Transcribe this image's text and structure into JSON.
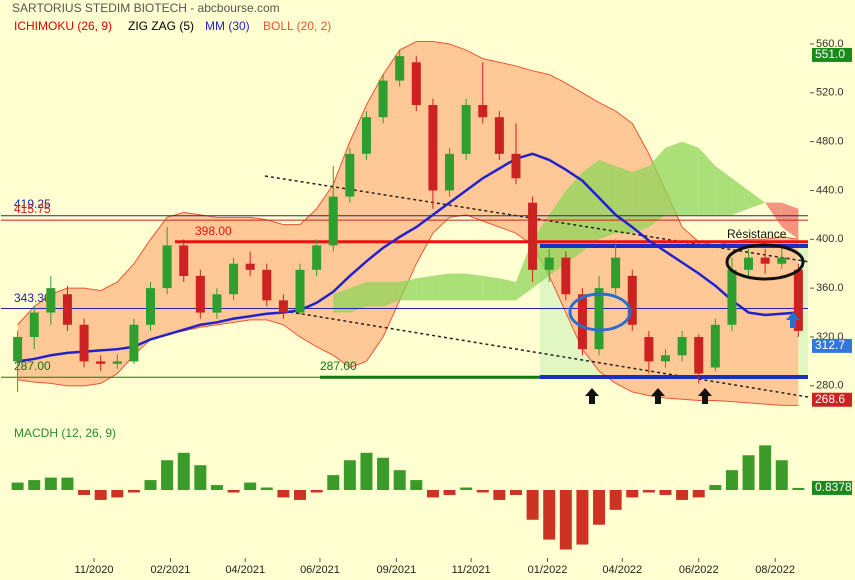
{
  "header": {
    "title": "SARTORIUS STEDIM BIOTECH - abcbourse.com"
  },
  "chart_data": [
    {
      "type": "candlestick",
      "legend": [
        {
          "name": "ICHIMOKU (26, 9)",
          "color": "#dd0000"
        },
        {
          "name": "ZIG ZAG (5)",
          "color": "#000000"
        },
        {
          "name": "MM (30)",
          "color": "#2222cc"
        },
        {
          "name": "BOLL (20, 2)",
          "color": "#ee5533"
        }
      ],
      "x": [
        0,
        1,
        2,
        3,
        4,
        5,
        6,
        7,
        8,
        9,
        10,
        11,
        12,
        13,
        14,
        15,
        16,
        17,
        18,
        19,
        20,
        21,
        22,
        23,
        24,
        25,
        26,
        27,
        28,
        29,
        30,
        31,
        32,
        33,
        34,
        35,
        36,
        37,
        38,
        39,
        40,
        41,
        42,
        43,
        44,
        45,
        46,
        47
      ],
      "open": [
        300,
        320,
        340,
        355,
        330,
        300,
        298,
        300,
        330,
        360,
        395,
        370,
        340,
        355,
        380,
        375,
        350,
        340,
        375,
        395,
        435,
        470,
        500,
        530,
        545,
        510,
        440,
        470,
        510,
        500,
        470,
        430,
        375,
        385,
        355,
        310,
        360,
        370,
        320,
        300,
        305,
        320,
        295,
        330,
        375,
        385,
        380,
        375
      ],
      "high": [
        325,
        345,
        370,
        362,
        335,
        305,
        306,
        335,
        365,
        410,
        400,
        375,
        360,
        385,
        390,
        380,
        355,
        380,
        400,
        460,
        475,
        505,
        535,
        555,
        550,
        515,
        475,
        515,
        545,
        505,
        495,
        435,
        392,
        390,
        360,
        370,
        400,
        375,
        325,
        310,
        325,
        322,
        335,
        385,
        392,
        392,
        395,
        380
      ],
      "low": [
        275,
        310,
        330,
        325,
        295,
        292,
        294,
        298,
        325,
        355,
        365,
        335,
        335,
        350,
        370,
        345,
        335,
        338,
        370,
        390,
        430,
        465,
        495,
        525,
        505,
        425,
        435,
        465,
        495,
        465,
        445,
        365,
        365,
        350,
        305,
        305,
        355,
        325,
        290,
        295,
        300,
        282,
        292,
        325,
        368,
        372,
        376,
        320
      ],
      "close": [
        320,
        340,
        360,
        330,
        300,
        298,
        300,
        330,
        360,
        395,
        370,
        340,
        355,
        380,
        375,
        350,
        340,
        375,
        395,
        435,
        470,
        500,
        530,
        550,
        510,
        440,
        470,
        510,
        500,
        470,
        450,
        375,
        385,
        355,
        310,
        360,
        385,
        330,
        300,
        305,
        320,
        290,
        330,
        375,
        385,
        380,
        385,
        325
      ],
      "up_color": "#2e9e2e",
      "down_color": "#cc2222",
      "mm30": [
        300,
        302,
        305,
        307,
        308,
        309,
        310,
        312,
        318,
        322,
        326,
        330,
        332,
        335,
        337,
        339,
        340,
        342,
        348,
        357,
        370,
        382,
        393,
        402,
        410,
        420,
        430,
        440,
        450,
        458,
        466,
        470,
        465,
        457,
        448,
        434,
        420,
        410,
        399,
        390,
        381,
        372,
        362,
        350,
        340,
        338,
        339,
        340
      ],
      "boll_upper": [
        330,
        345,
        355,
        360,
        360,
        358,
        365,
        380,
        400,
        418,
        422,
        420,
        418,
        418,
        418,
        416,
        412,
        412,
        425,
        445,
        480,
        510,
        535,
        555,
        562,
        562,
        560,
        555,
        548,
        545,
        542,
        538,
        535,
        528,
        520,
        512,
        505,
        495,
        470,
        440,
        410,
        398,
        395,
        398,
        400,
        400,
        402,
        400
      ],
      "boll_lower": [
        285,
        283,
        282,
        280,
        280,
        282,
        290,
        305,
        318,
        322,
        325,
        328,
        330,
        332,
        334,
        334,
        330,
        320,
        312,
        305,
        295,
        300,
        320,
        350,
        380,
        405,
        418,
        420,
        415,
        410,
        405,
        395,
        370,
        340,
        310,
        292,
        282,
        275,
        272,
        270,
        269,
        268,
        268,
        267,
        266,
        265,
        264,
        264
      ],
      "ichimoku_a": [
        null,
        null,
        null,
        null,
        null,
        null,
        null,
        null,
        null,
        null,
        null,
        null,
        null,
        null,
        null,
        null,
        null,
        null,
        null,
        355,
        360,
        365,
        365,
        365,
        368,
        370,
        372,
        372,
        370,
        368,
        365,
        400,
        420,
        440,
        455,
        465,
        460,
        455,
        460,
        475,
        480,
        475,
        460,
        450,
        440,
        430,
        410,
        400
      ],
      "ichimoku_b": [
        null,
        null,
        null,
        null,
        null,
        null,
        null,
        null,
        null,
        null,
        null,
        null,
        null,
        null,
        null,
        null,
        null,
        null,
        null,
        340,
        340,
        345,
        345,
        350,
        350,
        350,
        350,
        350,
        350,
        350,
        350,
        360,
        370,
        380,
        390,
        400,
        405,
        405,
        410,
        420,
        420,
        420,
        420,
        420,
        425,
        430,
        430,
        425
      ],
      "levels": [
        {
          "value": 419.25,
          "label": "419.25",
          "color": "#2222aa"
        },
        {
          "value": 415.75,
          "label": "415.75",
          "color": "#cc2222"
        },
        {
          "value": 398,
          "label": "398.00",
          "color": "#ee1111"
        },
        {
          "value": 343.3,
          "label": "343.30",
          "color": "#2222aa"
        },
        {
          "value": 287,
          "label": "287.00",
          "color": "#117711"
        }
      ],
      "annotation": "Résistance",
      "badges": [
        {
          "value": 551,
          "label": "551.0",
          "color": "#1a8a1a"
        },
        {
          "value": 312.7,
          "label": "312.7",
          "color": "#3377dd"
        },
        {
          "value": 268.6,
          "label": "268.6",
          "color": "#cc2222"
        }
      ],
      "xlim": [
        -1,
        48
      ],
      "xticks": [
        {
          "value": 4.6,
          "label": "11/2020"
        },
        {
          "value": 9.2,
          "label": "02/2021"
        },
        {
          "value": 13.7,
          "label": "04/2021"
        },
        {
          "value": 18.2,
          "label": "06/2021"
        },
        {
          "value": 22.8,
          "label": "09/2021"
        },
        {
          "value": 27.3,
          "label": "11/2021"
        },
        {
          "value": 31.9,
          "label": "01/2022"
        },
        {
          "value": 36.4,
          "label": "04/2022"
        },
        {
          "value": 41,
          "label": "06/2022"
        },
        {
          "value": 45.6,
          "label": "08/2022"
        }
      ],
      "ylim": [
        252,
        596
      ],
      "yticks": [
        {
          "value": 560,
          "label": "560.0"
        },
        {
          "value": 520,
          "label": "520.0"
        },
        {
          "value": 480,
          "label": "480.0"
        },
        {
          "value": 440,
          "label": "440.0"
        },
        {
          "value": 400,
          "label": "400.0"
        },
        {
          "value": 360,
          "label": "360.0"
        },
        {
          "value": 320,
          "label": "320.0"
        },
        {
          "value": 280,
          "label": "280.0"
        }
      ]
    },
    {
      "type": "bar",
      "title": "MACDH (12, 26, 9)",
      "values": [
        3,
        4,
        5,
        5,
        -2,
        -4,
        -3,
        -1,
        4,
        12,
        15,
        10,
        2,
        -1,
        3,
        1,
        -3,
        -4,
        -1,
        6,
        12,
        15,
        13,
        8,
        4,
        -3,
        -2,
        1,
        -1,
        -4,
        -2,
        -12,
        -20,
        -24,
        -22,
        -14,
        -8,
        -3,
        -1,
        -2,
        -4,
        -3,
        2,
        8,
        14,
        18,
        12,
        0.8378
      ],
      "up_color": "#3a9a2a",
      "down_color": "#cc3322",
      "ylim": [
        -25,
        25
      ],
      "badge": {
        "value": 0.8378,
        "color": "#1a8a1a"
      }
    }
  ]
}
